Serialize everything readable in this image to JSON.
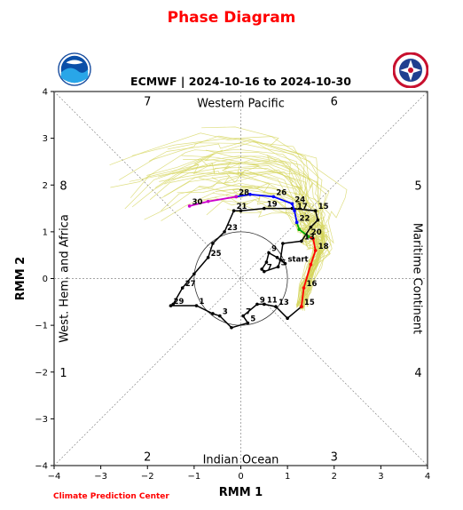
{
  "title": "Phase Diagram",
  "footer": "Climate Prediction Center",
  "logos": {
    "left": "noaa-logo",
    "right": "nws-logo"
  },
  "chart_data": {
    "type": "line",
    "title": "ECMWF | 2024-10-16 to 2024-10-30",
    "xlabel": "RMM 1",
    "ylabel": "RMM 2",
    "xlim": [
      -4,
      4
    ],
    "ylim": [
      -4,
      4
    ],
    "xticks": [
      -4,
      -3,
      -2,
      -1,
      0,
      1,
      2,
      3,
      4
    ],
    "yticks": [
      -4,
      -3,
      -2,
      -1,
      0,
      1,
      2,
      3,
      4
    ],
    "tick_labels_x": [
      "−4",
      "−3",
      "−2",
      "−1",
      "0",
      "1",
      "2",
      "3",
      "4"
    ],
    "tick_labels_y": [
      "−4",
      "−3",
      "−2",
      "−1",
      "0",
      "1",
      "2",
      "3",
      "4"
    ],
    "region_labels": [
      {
        "text": "Western Pacific",
        "position": "top"
      },
      {
        "text": "Indian Ocean",
        "position": "bottom"
      },
      {
        "text": "West. Hem. and Africa",
        "position": "left"
      },
      {
        "text": "Maritime Continent",
        "position": "right"
      }
    ],
    "phase_numbers": [
      {
        "text": "7",
        "x": -2.0,
        "y": 3.8
      },
      {
        "text": "6",
        "x": 2.0,
        "y": 3.8
      },
      {
        "text": "8",
        "x": -3.8,
        "y": 2.0
      },
      {
        "text": "5",
        "x": 3.8,
        "y": 2.0
      },
      {
        "text": "1",
        "x": -3.8,
        "y": -2.0
      },
      {
        "text": "4",
        "x": 3.8,
        "y": -2.0
      },
      {
        "text": "2",
        "x": -2.0,
        "y": -3.8
      },
      {
        "text": "3",
        "x": 2.0,
        "y": -3.8
      }
    ],
    "unit_circle_radius": 1,
    "colors": {
      "observed": "#000000",
      "forecast_red": "#ff0000",
      "forecast_green": "#00aa00",
      "forecast_blue": "#0000ff",
      "forecast_magenta": "#cc00cc",
      "ensemble": "#d4d45a",
      "title_red": "#ff0000"
    },
    "observed_track": [
      {
        "x": 0.95,
        "y": 0.32,
        "label": "start"
      },
      {
        "x": 0.78,
        "y": 0.45
      },
      {
        "x": 0.6,
        "y": 0.55,
        "label": "9"
      },
      {
        "x": 0.55,
        "y": 0.35
      },
      {
        "x": 0.45,
        "y": 0.2
      },
      {
        "x": 0.5,
        "y": 0.15,
        "label": "7"
      },
      {
        "x": 0.8,
        "y": 0.25,
        "label": "5"
      },
      {
        "x": 0.85,
        "y": 0.4
      },
      {
        "x": 0.9,
        "y": 0.75
      },
      {
        "x": 1.3,
        "y": 0.8,
        "label": "13"
      },
      {
        "x": 1.5,
        "y": 1.1
      },
      {
        "x": 1.65,
        "y": 1.25
      },
      {
        "x": 1.6,
        "y": 1.45,
        "label": "15"
      },
      {
        "x": 1.1,
        "y": 1.5
      },
      {
        "x": 0.5,
        "y": 1.5,
        "label": "19"
      },
      {
        "x": 0.0,
        "y": 1.45
      },
      {
        "x": -0.15,
        "y": 1.45,
        "label": "21"
      },
      {
        "x": -0.35,
        "y": 1.0,
        "label": "23"
      },
      {
        "x": -0.6,
        "y": 0.75
      },
      {
        "x": -0.7,
        "y": 0.45,
        "label": "25"
      },
      {
        "x": -1.0,
        "y": 0.1
      },
      {
        "x": -1.25,
        "y": -0.2,
        "label": "27"
      },
      {
        "x": -1.45,
        "y": -0.55
      },
      {
        "x": -1.5,
        "y": -0.58,
        "label": "29"
      },
      {
        "x": -0.95,
        "y": -0.58,
        "label": "1"
      },
      {
        "x": -0.6,
        "y": -0.75
      },
      {
        "x": -0.45,
        "y": -0.8,
        "label": "3"
      },
      {
        "x": -0.2,
        "y": -1.05
      },
      {
        "x": 0.15,
        "y": -0.95,
        "label": "5"
      },
      {
        "x": 0.05,
        "y": -0.8,
        "label": "7"
      },
      {
        "x": 0.35,
        "y": -0.55,
        "label": "9"
      },
      {
        "x": 0.5,
        "y": -0.55,
        "label": "11"
      },
      {
        "x": 0.75,
        "y": -0.6,
        "label": "13"
      },
      {
        "x": 1.0,
        "y": -0.85
      },
      {
        "x": 1.3,
        "y": -0.6,
        "label": "15"
      }
    ],
    "forecast_track_red": [
      {
        "x": 1.3,
        "y": -0.6
      },
      {
        "x": 1.35,
        "y": -0.2,
        "label": "16"
      },
      {
        "x": 1.5,
        "y": 0.3
      },
      {
        "x": 1.6,
        "y": 0.6,
        "label": "18"
      },
      {
        "x": 1.55,
        "y": 0.85
      },
      {
        "x": 1.45,
        "y": 0.9,
        "label": "20"
      }
    ],
    "forecast_track_green": [
      {
        "x": 1.45,
        "y": 0.9
      },
      {
        "x": 1.25,
        "y": 1.05
      },
      {
        "x": 1.2,
        "y": 1.2,
        "label": "22"
      }
    ],
    "forecast_track_blue": [
      {
        "x": 1.2,
        "y": 1.2
      },
      {
        "x": 1.15,
        "y": 1.45,
        "label": "17"
      },
      {
        "x": 1.1,
        "y": 1.6,
        "label": "24"
      },
      {
        "x": 0.7,
        "y": 1.75,
        "label": "26"
      },
      {
        "x": 0.2,
        "y": 1.8
      },
      {
        "x": -0.1,
        "y": 1.75,
        "label": "28"
      }
    ],
    "forecast_track_magenta": [
      {
        "x": -0.1,
        "y": 1.75
      },
      {
        "x": -0.7,
        "y": 1.65
      },
      {
        "x": -1.1,
        "y": 1.55,
        "label": "30"
      }
    ]
  }
}
